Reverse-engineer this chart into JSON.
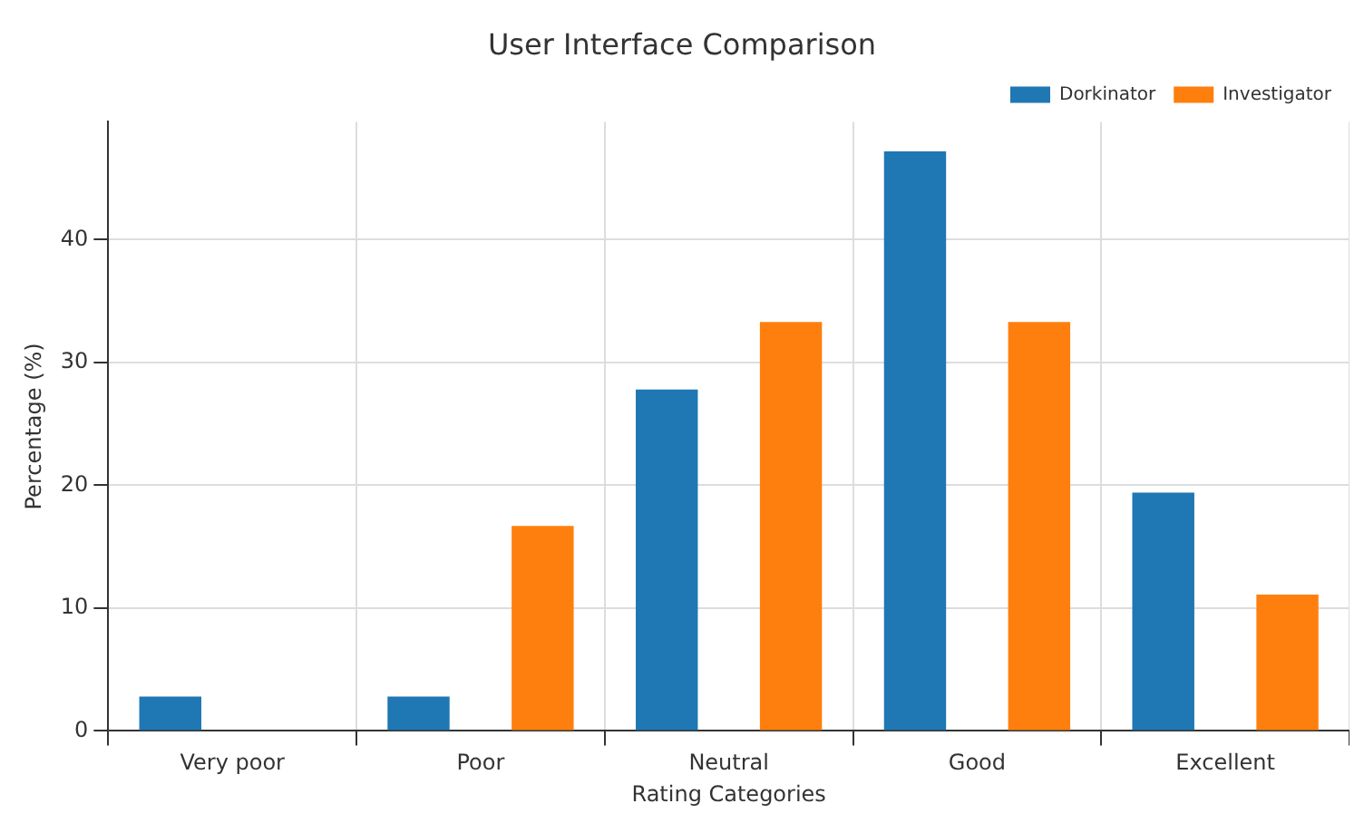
{
  "chart_data": {
    "type": "bar",
    "title": "User Interface Comparison",
    "xlabel": "Rating Categories",
    "ylabel": "Percentage (%)",
    "categories": [
      "Very poor",
      "Poor",
      "Neutral",
      "Good",
      "Excellent"
    ],
    "series": [
      {
        "name": "Dorkinator",
        "color": "#1f77b4",
        "values": [
          2.8,
          2.8,
          27.8,
          47.2,
          19.4
        ]
      },
      {
        "name": "Investigator",
        "color": "#ff7f0e",
        "values": [
          0,
          16.7,
          33.3,
          33.3,
          11.1
        ]
      }
    ],
    "ylim": [
      0,
      49.6
    ],
    "yticks": [
      0,
      10,
      20,
      30,
      40
    ],
    "grid": true,
    "legend": "top right"
  }
}
